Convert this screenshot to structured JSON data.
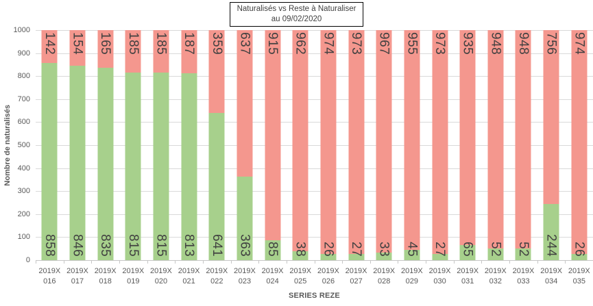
{
  "chart_data": {
    "type": "bar",
    "stacked": true,
    "title_line1": "Naturalisés vs Reste à Naturaliser",
    "title_line2": "au 09/02/2020",
    "xlabel": "SERIES REZE",
    "ylabel": "Nombre de naturalisés",
    "ylim": [
      0,
      1000
    ],
    "ytick_step": 100,
    "grid": true,
    "legend": "none",
    "category_prefix": "2019X",
    "categories": [
      "016",
      "017",
      "018",
      "019",
      "020",
      "021",
      "022",
      "023",
      "024",
      "025",
      "026",
      "027",
      "028",
      "029",
      "030",
      "031",
      "032",
      "033",
      "034",
      "035"
    ],
    "series": [
      {
        "name": "Naturalisés",
        "color": "#A7D08C",
        "values": [
          858,
          846,
          835,
          815,
          815,
          813,
          641,
          363,
          85,
          38,
          26,
          27,
          33,
          45,
          27,
          65,
          52,
          52,
          244,
          26
        ]
      },
      {
        "name": "Reste à Naturaliser",
        "color": "#F4978E",
        "values": [
          142,
          154,
          165,
          185,
          185,
          187,
          359,
          637,
          915,
          962,
          974,
          973,
          967,
          955,
          973,
          935,
          948,
          948,
          756,
          974
        ]
      }
    ],
    "colors": {
      "data_label": "#404040",
      "axis_text": "#595959",
      "gridline": "#d9d9d9",
      "axis_line": "#c6c6c6",
      "background": "#ffffff",
      "title_border": "#000000"
    }
  }
}
